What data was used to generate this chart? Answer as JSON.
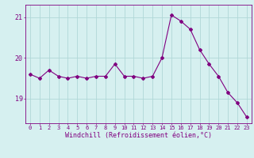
{
  "x": [
    0,
    1,
    2,
    3,
    4,
    5,
    6,
    7,
    8,
    9,
    10,
    11,
    12,
    13,
    14,
    15,
    16,
    17,
    18,
    19,
    20,
    21,
    22,
    23
  ],
  "y": [
    19.6,
    19.5,
    19.7,
    19.55,
    19.5,
    19.55,
    19.5,
    19.55,
    19.55,
    19.85,
    19.55,
    19.55,
    19.5,
    19.55,
    20.0,
    21.05,
    20.9,
    20.7,
    20.2,
    19.85,
    19.55,
    19.15,
    18.9,
    18.55
  ],
  "line_color": "#800080",
  "marker": "D",
  "marker_size": 2,
  "bg_color": "#d6f0f0",
  "grid_color": "#b0d8d8",
  "xlabel": "Windchill (Refroidissement éolien,°C)",
  "xlabel_color": "#800080",
  "tick_color": "#800080",
  "ylim": [
    18.4,
    21.3
  ],
  "yticks": [
    19,
    20,
    21
  ],
  "xticks": [
    0,
    1,
    2,
    3,
    4,
    5,
    6,
    7,
    8,
    9,
    10,
    11,
    12,
    13,
    14,
    15,
    16,
    17,
    18,
    19,
    20,
    21,
    22,
    23
  ],
  "spine_color": "#800080",
  "tick_fontsize": 5,
  "xlabel_fontsize": 6,
  "linewidth": 0.8
}
